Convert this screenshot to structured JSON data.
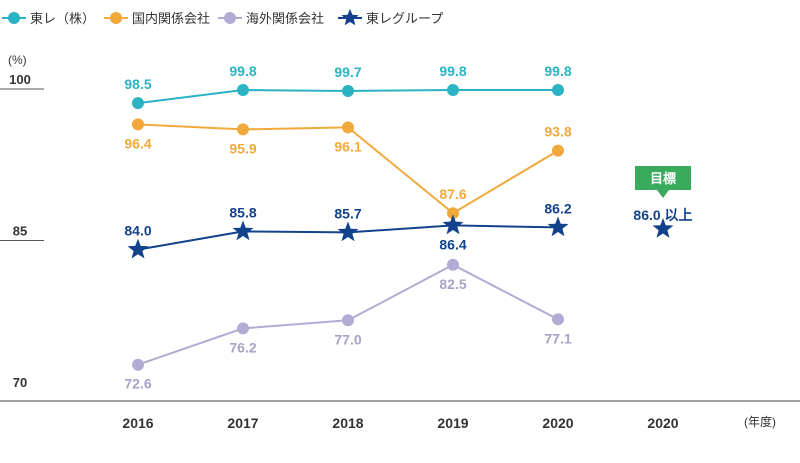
{
  "chart_data": {
    "type": "line",
    "ylabel": "(%)",
    "xlabel": "(年度)",
    "ylim": [
      70,
      100
    ],
    "yticks": [
      100,
      85,
      70
    ],
    "categories": [
      "2016",
      "2017",
      "2018",
      "2019",
      "2020",
      "2020"
    ],
    "series": [
      {
        "name": "東レ（株）",
        "marker": "circle",
        "color": "#2bb3c4",
        "label_color": "#2bb3c4",
        "values": [
          98.5,
          99.8,
          99.7,
          99.8,
          99.8,
          null
        ],
        "label_pos": [
          "above",
          "above",
          "above",
          "above",
          "above"
        ]
      },
      {
        "name": "国内関係会社",
        "marker": "circle",
        "color": "#f2a93b",
        "label_color": "#f2a93b",
        "values": [
          96.4,
          95.9,
          96.1,
          87.6,
          93.8,
          null
        ],
        "label_pos": [
          "below",
          "below",
          "below",
          "above",
          "above"
        ]
      },
      {
        "name": "海外関係会社",
        "marker": "circle",
        "color": "#b2abd3",
        "label_color": "#a7a2c8",
        "values": [
          72.6,
          76.2,
          77.0,
          82.5,
          77.1,
          null
        ],
        "label_pos": [
          "below",
          "below",
          "below",
          "below",
          "below"
        ]
      },
      {
        "name": "東レグループ",
        "marker": "star",
        "color": "#13428c",
        "label_color": "#13428c",
        "values": [
          84.0,
          85.8,
          85.7,
          86.4,
          86.2,
          null
        ],
        "label_pos": [
          "above",
          "above",
          "above",
          "below",
          "above"
        ]
      }
    ],
    "target": {
      "badge": "目標",
      "label": "86.0 以上",
      "value": 86.0,
      "category_index": 5,
      "badge_color": "#3aaa5c"
    }
  }
}
